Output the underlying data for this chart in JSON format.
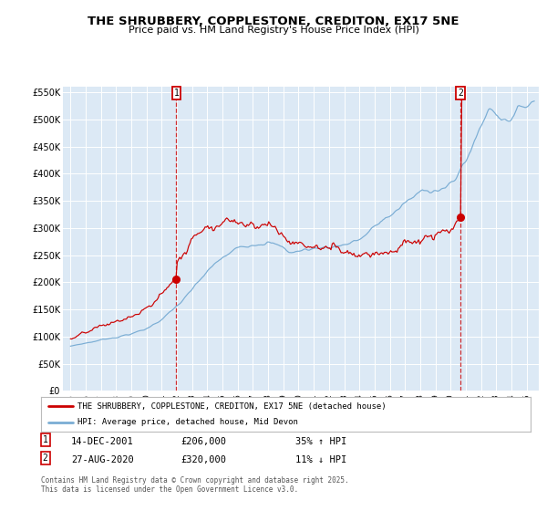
{
  "title": "THE SHRUBBERY, COPPLESTONE, CREDITON, EX17 5NE",
  "subtitle": "Price paid vs. HM Land Registry's House Price Index (HPI)",
  "legend_label_red": "THE SHRUBBERY, COPPLESTONE, CREDITON, EX17 5NE (detached house)",
  "legend_label_blue": "HPI: Average price, detached house, Mid Devon",
  "marker1_date": "14-DEC-2001",
  "marker1_price": 206000,
  "marker1_label": "35% ↑ HPI",
  "marker2_date": "27-AUG-2020",
  "marker2_price": 320000,
  "marker2_label": "11% ↓ HPI",
  "ylim": [
    0,
    560000
  ],
  "xlim_start": 1994.5,
  "xlim_end": 2025.8,
  "background_color": "#ffffff",
  "plot_bg_color": "#dce9f5",
  "grid_color": "#ffffff",
  "red_color": "#cc0000",
  "blue_color": "#7aadd4",
  "sale1_x": 2001.958,
  "sale1_y": 206000,
  "sale2_x": 2020.646,
  "sale2_y": 320000,
  "footnote": "Contains HM Land Registry data © Crown copyright and database right 2025.\nThis data is licensed under the Open Government Licence v3.0."
}
